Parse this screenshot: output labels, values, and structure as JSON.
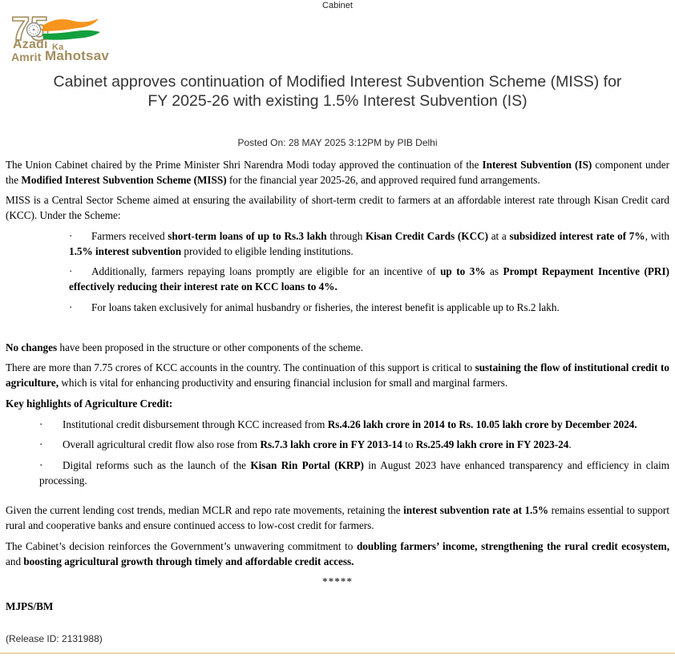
{
  "page": {
    "category": "Cabinet",
    "title_lines": [
      "Cabinet approves continuation of Modified Interest Subvention Scheme (MISS) for",
      "FY 2025-26 with existing 1.5% Interest Subvention (IS)"
    ],
    "posted_on": "Posted On: 28 MAY 2025 3:12PM by PIB Delhi"
  },
  "logo": {
    "name": "Azadi Ka Amrit Mahotsav",
    "number": "75",
    "words": {
      "azadi": "Azadi",
      "ka": "Ka",
      "amrit": "Amrit",
      "mahotsav": "Mahotsav"
    },
    "colors": {
      "gold": "#a28e5e",
      "saffron": "#f7941e",
      "green": "#13a03e",
      "chakra": "#8f8f8f"
    }
  },
  "article": {
    "bullet_char": "·",
    "blocks": [
      {
        "type": "p",
        "runs": [
          {
            "t": "The Union Cabinet chaired by the Prime Minister Shri Narendra Modi today approved the continuation of the "
          },
          {
            "t": "Interest Subvention (IS)",
            "b": true
          },
          {
            "t": " component under the "
          },
          {
            "t": "Modified Interest Subvention Scheme (MISS)",
            "b": true
          },
          {
            "t": " for the financial year 2025-26, and approved required fund arrangements."
          }
        ]
      },
      {
        "type": "p",
        "runs": [
          {
            "t": "MISS is a Central Sector Scheme aimed at ensuring the availability of short-term credit to farmers at an affordable interest rate through Kisan Credit card (KCC). Under the Scheme:"
          }
        ]
      },
      {
        "type": "bullet1",
        "runs": [
          {
            "t": "Farmers received "
          },
          {
            "t": "short-term loans of up to Rs.3 lakh",
            "b": true
          },
          {
            "t": " through "
          },
          {
            "t": "Kisan Credit Cards (KCC)",
            "b": true
          },
          {
            "t": " at a "
          },
          {
            "t": "subsidized interest rate of 7%",
            "b": true
          },
          {
            "t": ", with "
          },
          {
            "t": "1.5% interest subvention",
            "b": true
          },
          {
            "t": " provided to eligible lending institutions."
          }
        ]
      },
      {
        "type": "bullet1",
        "runs": [
          {
            "t": "Additionally, farmers repaying loans promptly are eligible for an incentive of "
          },
          {
            "t": "up to 3%",
            "b": true
          },
          {
            "t": " as "
          },
          {
            "t": "Prompt Repayment Incentive (PRI) effectively reducing their interest rate on KCC loans to 4%.",
            "b": true
          }
        ]
      },
      {
        "type": "bullet1",
        "runs": [
          {
            "t": "For loans taken exclusively for animal husbandry or fisheries, the interest benefit is applicable up to Rs.2 lakh."
          }
        ]
      },
      {
        "type": "gap",
        "h": 24
      },
      {
        "type": "p",
        "runs": [
          {
            "t": "No changes",
            "b": true
          },
          {
            "t": " have been proposed in the structure or other components of the scheme."
          }
        ]
      },
      {
        "type": "p",
        "runs": [
          {
            "t": "There are more than 7.75 crores of KCC accounts in the country. The continuation of this support is critical to "
          },
          {
            "t": "sustaining the flow of institutional credit to agriculture,",
            "b": true
          },
          {
            "t": " which is vital for enhancing productivity and ensuring financial inclusion for small and marginal farmers."
          }
        ]
      },
      {
        "type": "p",
        "runs": [
          {
            "t": "Key highlights of Agriculture Credit:",
            "b": true
          }
        ]
      },
      {
        "type": "bullet2",
        "runs": [
          {
            "t": "Institutional credit disbursement through KCC increased from "
          },
          {
            "t": "Rs.4.26 lakh crore in 2014 to Rs. 10.05 lakh crore by December 2024.",
            "b": true
          }
        ]
      },
      {
        "type": "bullet2",
        "runs": [
          {
            "t": "Overall agricultural credit flow also rose from "
          },
          {
            "t": "Rs.7.3 lakh crore in FY 2013-14",
            "b": true
          },
          {
            "t": " to "
          },
          {
            "t": "Rs.25.49 lakh crore in FY 2023-24",
            "b": true
          },
          {
            "t": "."
          }
        ]
      },
      {
        "type": "bullet2",
        "runs": [
          {
            "t": "Digital reforms such as the launch of the "
          },
          {
            "t": "Kisan Rin Portal (KRP)",
            "b": true
          },
          {
            "t": " in August 2023 have enhanced transparency and efficiency in claim processing."
          }
        ]
      },
      {
        "type": "gap",
        "h": 12
      },
      {
        "type": "p",
        "runs": [
          {
            "t": "Given the current lending cost trends, median MCLR and repo rate movements, retaining the "
          },
          {
            "t": "interest subvention rate at 1.5%",
            "b": true
          },
          {
            "t": " remains essential to support rural and cooperative banks and ensure continued access to low-cost credit for farmers."
          }
        ]
      },
      {
        "type": "p",
        "runs": [
          {
            "t": "The Cabinet’s decision reinforces the Government’s unwavering commitment to "
          },
          {
            "t": "doubling farmers’ income, strengthening the rural credit ecosystem,",
            "b": true
          },
          {
            "t": " and "
          },
          {
            "t": "boosting agricultural growth through timely and affordable credit access.",
            "b": true
          }
        ]
      },
      {
        "type": "stars",
        "runs": [
          {
            "t": "*****"
          }
        ]
      },
      {
        "type": "signature",
        "runs": [
          {
            "t": "MJPS/BM",
            "b": true
          }
        ]
      },
      {
        "type": "release",
        "runs": [
          {
            "t": "(Release ID: 2131988)"
          }
        ]
      }
    ]
  },
  "footer": {
    "rule_color": "#e9d7a7"
  }
}
